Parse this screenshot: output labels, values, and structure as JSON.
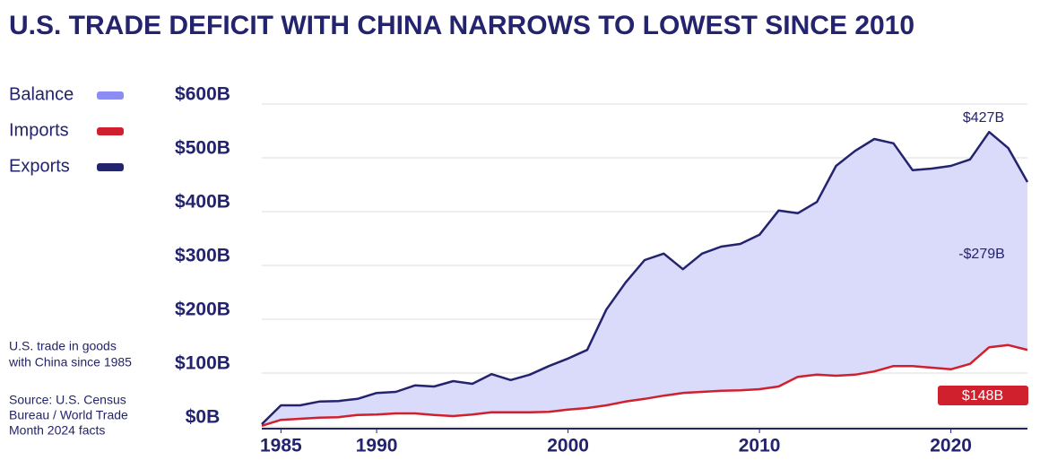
{
  "chart_data": {
    "type": "line",
    "title": "U.S. TRADE DEFICIT WITH CHINA NARROWS TO LOWEST SINCE 2010",
    "note": [
      "U.S. trade in goods",
      "with China since 1985"
    ],
    "source": [
      "Source: U.S. Census",
      "Bureau / World Trade",
      "Month 2024 facts"
    ],
    "fill": {
      "name": "Balance",
      "color": "#dadafb",
      "legend_color": "#8c8cf5"
    },
    "x": [
      1984,
      1985,
      1986,
      1987,
      1988,
      1989,
      1990,
      1991,
      1992,
      1993,
      1994,
      1995,
      1996,
      1997,
      1998,
      1999,
      2000,
      2001,
      2002,
      2003,
      2004,
      2005,
      2006,
      2007,
      2008,
      2009,
      2010,
      2011,
      2012,
      2013,
      2014,
      2015,
      2016,
      2017,
      2018,
      2019,
      2020,
      2021,
      2022,
      2023,
      2024
    ],
    "series": [
      {
        "name": "Imports",
        "color": "#d0202e",
        "values": [
          2,
          13,
          15,
          17,
          18,
          22,
          23,
          25,
          25,
          22,
          20,
          23,
          27,
          27,
          27,
          28,
          32,
          35,
          40,
          47,
          52,
          58,
          63,
          65,
          67,
          68,
          70,
          75,
          93,
          97,
          95,
          97,
          103,
          113,
          113,
          110,
          107,
          117,
          148,
          152,
          143
        ]
      },
      {
        "name": "Exports",
        "color": "#23236e",
        "values": [
          5,
          40,
          40,
          47,
          48,
          52,
          63,
          65,
          77,
          75,
          85,
          80,
          98,
          87,
          97,
          113,
          127,
          143,
          218,
          268,
          310,
          322,
          293,
          322,
          335,
          340,
          357,
          402,
          397,
          418,
          485,
          513,
          535,
          527,
          477,
          480,
          485,
          497,
          548,
          518,
          455
        ]
      }
    ],
    "annotations": [
      "$427B",
      "-$279B",
      "$148B"
    ],
    "xlim": [
      1984,
      2024
    ],
    "ylim": [
      0,
      600
    ],
    "xticks": [
      1985,
      1990,
      2000,
      2010,
      2020
    ],
    "yticks": [
      {
        "value": 0,
        "label": "$0B"
      },
      {
        "value": 100,
        "label": "$100B"
      },
      {
        "value": 200,
        "label": "$200B"
      },
      {
        "value": 300,
        "label": "$300B"
      },
      {
        "value": 400,
        "label": "$400B"
      },
      {
        "value": 500,
        "label": "$500B"
      },
      {
        "value": 600,
        "label": "$600B"
      }
    ],
    "grid": true
  }
}
